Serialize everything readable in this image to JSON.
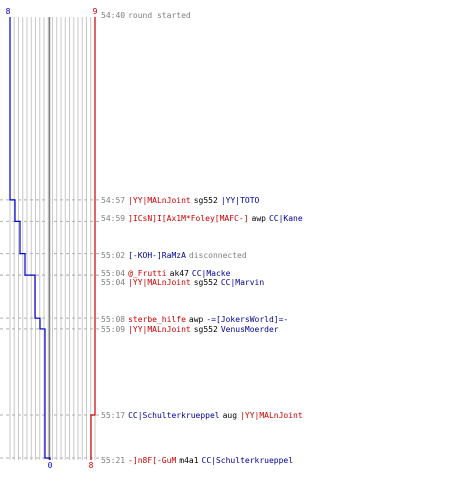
{
  "scoreboard": {
    "top_left": "8",
    "top_right": "9",
    "bottom_left": "0",
    "bottom_right": "8"
  },
  "colors": {
    "blue_team": "#0000cc",
    "red_team": "#cc0000",
    "grid": "#c8c8c8",
    "time": "#808080"
  },
  "log": [
    {
      "time": "54:40",
      "action": "round started"
    },
    {
      "time": "54:57",
      "killer": "|YY|MALnJoint",
      "killer_team": "red",
      "weapon": "sg552",
      "victim": "|YY|TOTO",
      "victim_team": "blue"
    },
    {
      "time": "54:59",
      "killer": "]ICsN]I[Ax1M*Foley[MAFC-]",
      "killer_team": "red",
      "weapon": "awp",
      "victim": "CC|Kane",
      "victim_team": "blue"
    },
    {
      "time": "55:02",
      "player": "[-KOH-]RaMzA",
      "player_team": "blue",
      "action": "disconnected"
    },
    {
      "time": "55:04",
      "killer": "@_Frutti",
      "killer_team": "red",
      "weapon": "ak47",
      "victim": "CC|Macke",
      "victim_team": "blue"
    },
    {
      "time": "55:04",
      "killer": "|YY|MALnJoint",
      "killer_team": "red",
      "weapon": "sg552",
      "victim": "CC|Marvin",
      "victim_team": "blue"
    },
    {
      "time": "55:08",
      "killer": "sterbe_hilfe",
      "killer_team": "red",
      "weapon": "awp",
      "victim": "-=[JokersWorld]=-",
      "victim_team": "blue"
    },
    {
      "time": "55:09",
      "killer": "|YY|MALnJoint",
      "killer_team": "red",
      "weapon": "sg552",
      "victim": "VenusMoerder",
      "victim_team": "blue"
    },
    {
      "time": "55:17",
      "killer": "CC|Schulterkrueppel",
      "killer_team": "blue",
      "weapon": "aug",
      "victim": "|YY|MALnJoint",
      "victim_team": "red"
    },
    {
      "time": "55:21",
      "killer": "-]n8F[-GuM",
      "killer_team": "red",
      "weapon": "m4a1",
      "victim": "CC|Schulterkrueppel",
      "victim_team": "blue"
    }
  ],
  "chart_data": {
    "type": "line",
    "x": [
      "54:40",
      "54:57",
      "54:59",
      "55:02",
      "55:04",
      "55:04",
      "55:08",
      "55:09",
      "55:17",
      "55:21"
    ],
    "series": [
      {
        "values": [
          8,
          7,
          6,
          5,
          4,
          3,
          2,
          1,
          1,
          0
        ]
      },
      {
        "values": [
          9,
          9,
          9,
          9,
          9,
          9,
          9,
          9,
          8,
          8
        ]
      }
    ],
    "ylim": [
      0,
      9
    ]
  }
}
